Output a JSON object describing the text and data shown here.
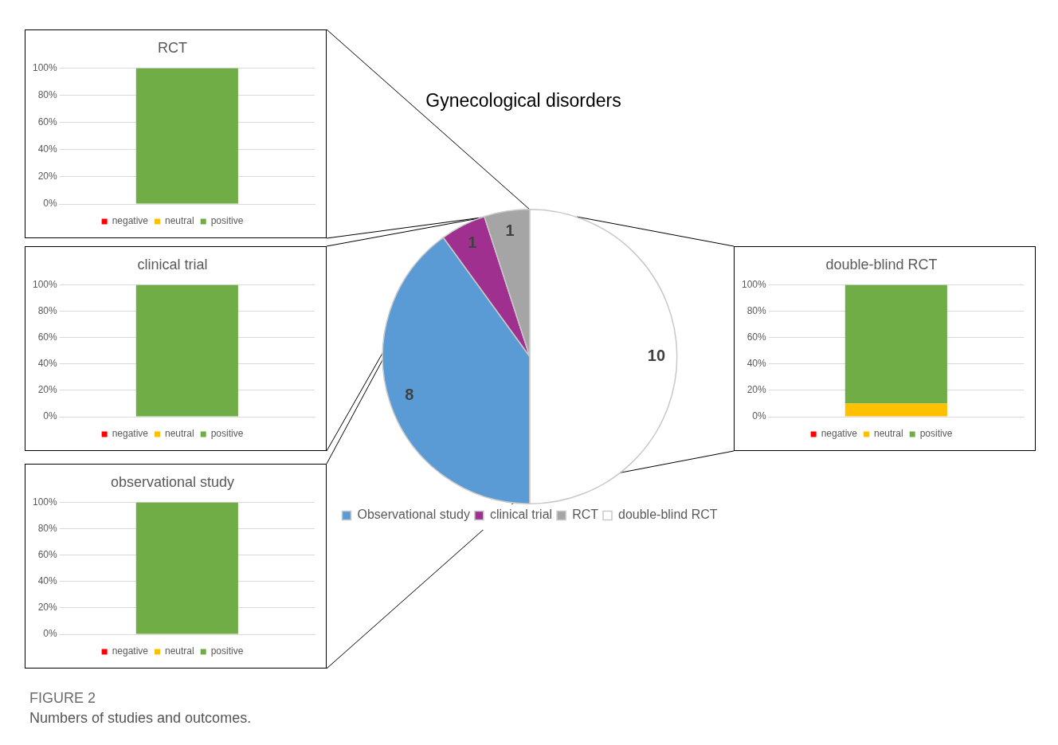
{
  "chart_data": [
    {
      "type": "pie",
      "title": "Gynecological disorders",
      "categories": [
        "Observational study",
        "clinical trial",
        "RCT",
        "double-blind RCT"
      ],
      "values": [
        8,
        1,
        1,
        10
      ],
      "colors": [
        "#5b9bd5",
        "#a0308f",
        "#a5a5a5",
        "#ffffff"
      ],
      "data_labels": true,
      "legend": "bottom",
      "annotations": [
        "FIGURE 2",
        "Numbers of studies and outcomes."
      ]
    },
    {
      "type": "bar",
      "title": "RCT",
      "categories": [
        null
      ],
      "stacked": true,
      "ylim": [
        0,
        100
      ],
      "yticks": [
        {
          "value": 0,
          "label": "0%"
        },
        {
          "value": 20,
          "label": "20%"
        },
        {
          "value": 40,
          "label": "40%"
        },
        {
          "value": 60,
          "label": "60%"
        },
        {
          "value": 80,
          "label": "80%"
        },
        {
          "value": 100,
          "label": "100%"
        }
      ],
      "grid": "y",
      "legend": "bottom",
      "tick_labels": "y",
      "series": [
        {
          "name": "negative",
          "color": "#ff0000",
          "values": [
            0
          ]
        },
        {
          "name": "neutral",
          "color": "#ffc000",
          "values": [
            0
          ]
        },
        {
          "name": "positive",
          "color": "#70ad47",
          "values": [
            100
          ]
        }
      ]
    },
    {
      "type": "bar",
      "title": "clinical trial",
      "categories": [
        null
      ],
      "stacked": true,
      "ylim": [
        0,
        100
      ],
      "yticks": [
        {
          "value": 0,
          "label": "0%"
        },
        {
          "value": 20,
          "label": "20%"
        },
        {
          "value": 40,
          "label": "40%"
        },
        {
          "value": 60,
          "label": "60%"
        },
        {
          "value": 80,
          "label": "80%"
        },
        {
          "value": 100,
          "label": "100%"
        }
      ],
      "grid": "y",
      "legend": "bottom",
      "tick_labels": "y",
      "series": [
        {
          "name": "negative",
          "color": "#ff0000",
          "values": [
            0
          ]
        },
        {
          "name": "neutral",
          "color": "#ffc000",
          "values": [
            0
          ]
        },
        {
          "name": "positive",
          "color": "#70ad47",
          "values": [
            100
          ]
        }
      ]
    },
    {
      "type": "bar",
      "title": "observational study",
      "categories": [
        null
      ],
      "stacked": true,
      "ylim": [
        0,
        100
      ],
      "yticks": [
        {
          "value": 0,
          "label": "0%"
        },
        {
          "value": 20,
          "label": "20%"
        },
        {
          "value": 40,
          "label": "40%"
        },
        {
          "value": 60,
          "label": "60%"
        },
        {
          "value": 80,
          "label": "80%"
        },
        {
          "value": 100,
          "label": "100%"
        }
      ],
      "grid": "y",
      "legend": "bottom",
      "tick_labels": "y",
      "series": [
        {
          "name": "negative",
          "color": "#ff0000",
          "values": [
            0
          ]
        },
        {
          "name": "neutral",
          "color": "#ffc000",
          "values": [
            0
          ]
        },
        {
          "name": "positive",
          "color": "#70ad47",
          "values": [
            100
          ]
        }
      ]
    },
    {
      "type": "bar",
      "title": "double-blind RCT",
      "categories": [
        null
      ],
      "stacked": true,
      "ylim": [
        0,
        100
      ],
      "yticks": [
        {
          "value": 0,
          "label": "0%"
        },
        {
          "value": 20,
          "label": "20%"
        },
        {
          "value": 40,
          "label": "40%"
        },
        {
          "value": 60,
          "label": "60%"
        },
        {
          "value": 80,
          "label": "80%"
        },
        {
          "value": 100,
          "label": "100%"
        }
      ],
      "grid": "y",
      "legend": "bottom",
      "tick_labels": "y",
      "series": [
        {
          "name": "negative",
          "color": "#ff0000",
          "values": [
            0
          ]
        },
        {
          "name": "neutral",
          "color": "#ffc000",
          "values": [
            10
          ]
        },
        {
          "name": "positive",
          "color": "#70ad47",
          "values": [
            90
          ]
        }
      ]
    }
  ]
}
